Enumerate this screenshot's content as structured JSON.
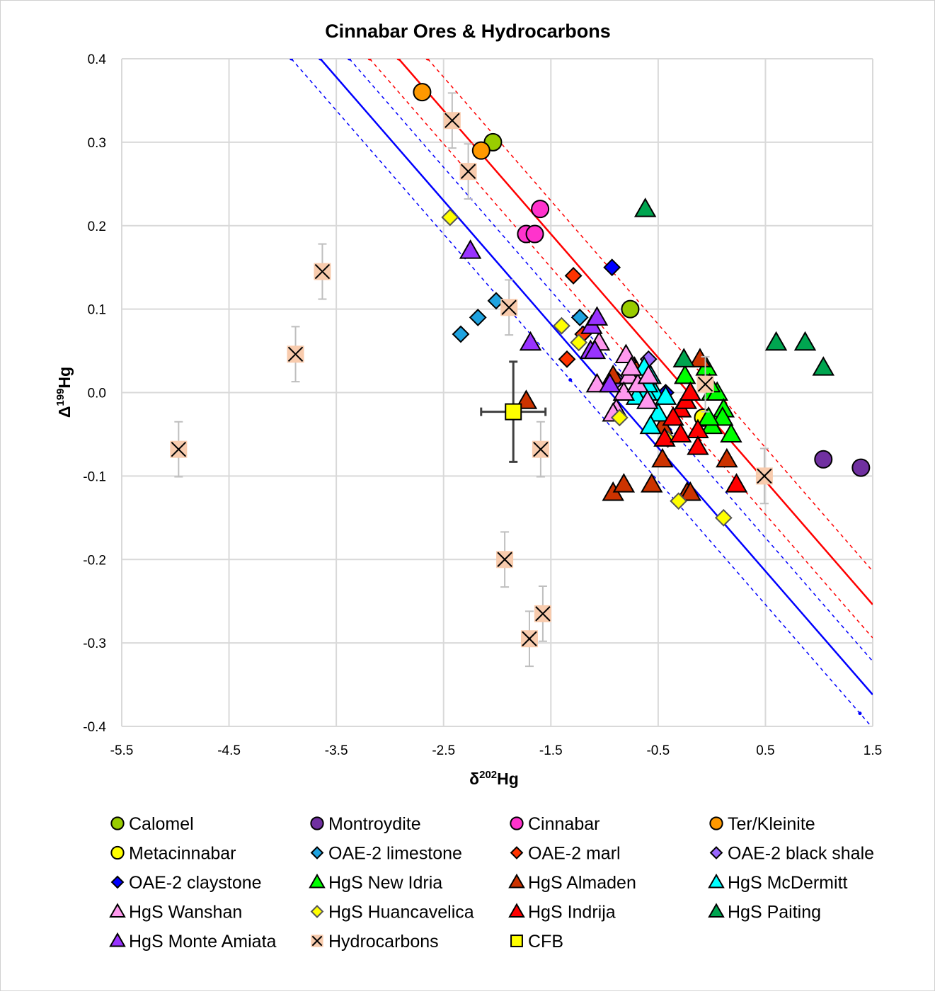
{
  "chart_data": {
    "type": "scatter",
    "title": "Cinnabar Ores & Hydrocarbons",
    "xlabel": {
      "base": "δ",
      "sup": "202",
      "tail": "Hg"
    },
    "ylabel": {
      "base": "Δ",
      "sup": "199",
      "tail": "Hg"
    },
    "xlim": [
      -5.5,
      1.5
    ],
    "ylim": [
      -0.4,
      0.4
    ],
    "xticks": [
      "-5.5",
      "-4.5",
      "-3.5",
      "-2.5",
      "-1.5",
      "-0.5",
      "0.5",
      "1.5"
    ],
    "yticks": [
      "0.4",
      "0.3",
      "0.2",
      "0.1",
      "0.0",
      "-0.1",
      "-0.2",
      "-0.3",
      "-0.4"
    ],
    "grid": true,
    "legend_position": "bottom",
    "reference_lines": [
      {
        "color": "#0000ff",
        "style": "solid",
        "slope": -0.148,
        "intercept": -0.14
      },
      {
        "color": "#0000ff",
        "style": "dashed",
        "slope": -0.148,
        "intercept": -0.1
      },
      {
        "color": "#0000ff",
        "style": "dashed",
        "slope": -0.148,
        "intercept": -0.18
      },
      {
        "color": "#ff0000",
        "style": "solid",
        "slope": -0.148,
        "intercept": -0.032
      },
      {
        "color": "#ff0000",
        "style": "dashed",
        "slope": -0.148,
        "intercept": 0.008
      },
      {
        "color": "#ff0000",
        "style": "dashed",
        "slope": -0.148,
        "intercept": -0.072
      }
    ],
    "series": [
      {
        "name": "Calomel",
        "marker": "circle",
        "color": "#99cc00",
        "points": [
          [
            -2.04,
            0.3
          ],
          [
            -0.76,
            0.1
          ]
        ]
      },
      {
        "name": "Montroydite",
        "marker": "circle",
        "color": "#7030a0",
        "points": [
          [
            1.04,
            -0.08
          ],
          [
            1.39,
            -0.09
          ]
        ]
      },
      {
        "name": "Cinnabar",
        "marker": "circle",
        "color": "#ff33cc",
        "points": [
          [
            -1.6,
            0.22
          ],
          [
            -1.73,
            0.19
          ],
          [
            -1.65,
            0.19
          ]
        ]
      },
      {
        "name": "Ter/Kleinite",
        "marker": "circle",
        "color": "#ff9900",
        "points": [
          [
            -2.7,
            0.36
          ],
          [
            -2.15,
            0.29
          ]
        ]
      },
      {
        "name": "Metacinnabar",
        "marker": "circle",
        "color": "#ffff00",
        "points": [
          [
            -0.08,
            -0.03
          ]
        ]
      },
      {
        "name": "OAE-2 limestone",
        "marker": "diamond",
        "color": "#1fa3e0",
        "points": [
          [
            -2.34,
            0.07
          ],
          [
            -2.18,
            0.09
          ],
          [
            -2.01,
            0.11
          ],
          [
            -1.23,
            0.09
          ]
        ]
      },
      {
        "name": "OAE-2 marl",
        "marker": "diamond",
        "color": "#ff3300",
        "points": [
          [
            -1.29,
            0.14
          ],
          [
            -1.35,
            0.04
          ],
          [
            -1.2,
            0.07
          ]
        ]
      },
      {
        "name": "OAE-2 black shale",
        "marker": "diamond",
        "color": "#9966ff",
        "points": [
          [
            -0.59,
            0.04
          ],
          [
            -0.88,
            0.015
          ]
        ]
      },
      {
        "name": "OAE-2 claystone",
        "marker": "diamond",
        "color": "#0000ff",
        "points": [
          [
            -0.93,
            0.15
          ],
          [
            -0.43,
            0.0
          ]
        ]
      },
      {
        "name": "HgS New Idria",
        "marker": "triangle",
        "color": "#00ff00",
        "points": [
          [
            -0.05,
            0.03
          ],
          [
            0.0,
            0.0
          ],
          [
            0.05,
            0.0
          ],
          [
            0.11,
            -0.02
          ],
          [
            0.1,
            -0.03
          ],
          [
            0.0,
            -0.04
          ],
          [
            0.18,
            -0.05
          ],
          [
            -0.25,
            0.02
          ],
          [
            -0.03,
            -0.03
          ],
          [
            -0.02,
            0.01
          ]
        ]
      },
      {
        "name": "HgS Almaden",
        "marker": "triangle",
        "color": "#cc3300",
        "points": [
          [
            -1.73,
            -0.01
          ],
          [
            -0.92,
            -0.12
          ],
          [
            -0.82,
            -0.11
          ],
          [
            -0.56,
            -0.11
          ],
          [
            -0.46,
            -0.08
          ],
          [
            -0.23,
            -0.12
          ],
          [
            -0.2,
            -0.12
          ],
          [
            0.14,
            -0.08
          ],
          [
            -0.11,
            0.04
          ],
          [
            -0.92,
            0.02
          ],
          [
            -0.46,
            -0.04
          ],
          [
            -0.72,
            0.03
          ]
        ]
      },
      {
        "name": "HgS McDermitt",
        "marker": "triangle",
        "color": "#00ffff",
        "points": [
          [
            -0.63,
            0.03
          ],
          [
            -0.57,
            0.02
          ],
          [
            -0.53,
            0.0
          ],
          [
            -0.43,
            -0.005
          ],
          [
            -0.61,
            0.0
          ],
          [
            -0.5,
            -0.025
          ],
          [
            -0.57,
            -0.04
          ],
          [
            -0.7,
            -0.005
          ],
          [
            -0.6,
            0.01
          ]
        ]
      },
      {
        "name": "HgS Wanshan",
        "marker": "triangle",
        "color": "#ff99ee",
        "points": [
          [
            -1.07,
            0.01
          ],
          [
            -0.8,
            0.045
          ],
          [
            -0.77,
            0.02
          ],
          [
            -0.82,
            0.0
          ],
          [
            -0.69,
            0.01
          ],
          [
            -0.59,
            0.02
          ],
          [
            -0.6,
            -0.01
          ],
          [
            -0.89,
            -0.02
          ],
          [
            -0.92,
            -0.025
          ],
          [
            -1.05,
            0.06
          ],
          [
            -0.75,
            0.03
          ]
        ]
      },
      {
        "name": "HgS Huancavelica",
        "marker": "diamond",
        "color": "#ffff00",
        "points": [
          [
            -2.44,
            0.21
          ],
          [
            -1.4,
            0.08
          ],
          [
            -1.24,
            0.06
          ],
          [
            -0.86,
            -0.03
          ],
          [
            -0.31,
            -0.13
          ],
          [
            0.11,
            -0.15
          ],
          [
            -0.41,
            -0.056
          ]
        ]
      },
      {
        "name": "HgS Indrija",
        "marker": "triangle",
        "color": "#ff0000",
        "points": [
          [
            0.23,
            -0.11
          ],
          [
            -0.13,
            -0.045
          ],
          [
            -0.13,
            -0.065
          ],
          [
            -0.29,
            -0.02
          ],
          [
            -0.36,
            -0.03
          ],
          [
            -0.24,
            -0.01
          ],
          [
            -0.2,
            0.0
          ],
          [
            -0.44,
            -0.055
          ],
          [
            -0.29,
            -0.05
          ]
        ]
      },
      {
        "name": "HgS Paiting",
        "marker": "triangle",
        "color": "#00a550",
        "points": [
          [
            -0.62,
            0.22
          ],
          [
            0.6,
            0.06
          ],
          [
            0.87,
            0.06
          ],
          [
            1.04,
            0.03
          ],
          [
            -0.26,
            0.04
          ]
        ]
      },
      {
        "name": "HgS Monte Amiata",
        "marker": "triangle",
        "color": "#9933ff",
        "points": [
          [
            -2.25,
            0.17
          ],
          [
            -1.69,
            0.06
          ],
          [
            -1.12,
            0.08
          ],
          [
            -1.07,
            0.09
          ],
          [
            -1.13,
            0.05
          ],
          [
            -1.09,
            0.05
          ],
          [
            -0.95,
            0.01
          ]
        ]
      },
      {
        "name": "Hydrocarbons",
        "marker": "xsquare",
        "color": "#f8cbad",
        "yerr": 0.033,
        "points": [
          [
            -4.97,
            -0.068
          ],
          [
            -3.88,
            0.046
          ],
          [
            -3.63,
            0.145
          ],
          [
            -2.42,
            0.326
          ],
          [
            -2.27,
            0.265
          ],
          [
            -1.89,
            0.102
          ],
          [
            -1.595,
            -0.068
          ],
          [
            -1.93,
            -0.2
          ],
          [
            -1.575,
            -0.265
          ],
          [
            -1.7,
            -0.295
          ],
          [
            -0.06,
            0.01
          ],
          [
            0.49,
            -0.1
          ]
        ]
      },
      {
        "name": "CFB",
        "marker": "square",
        "color": "#ffff00",
        "xerr": 0.3,
        "yerr": 0.06,
        "points": [
          [
            -1.85,
            -0.023
          ]
        ]
      }
    ]
  }
}
